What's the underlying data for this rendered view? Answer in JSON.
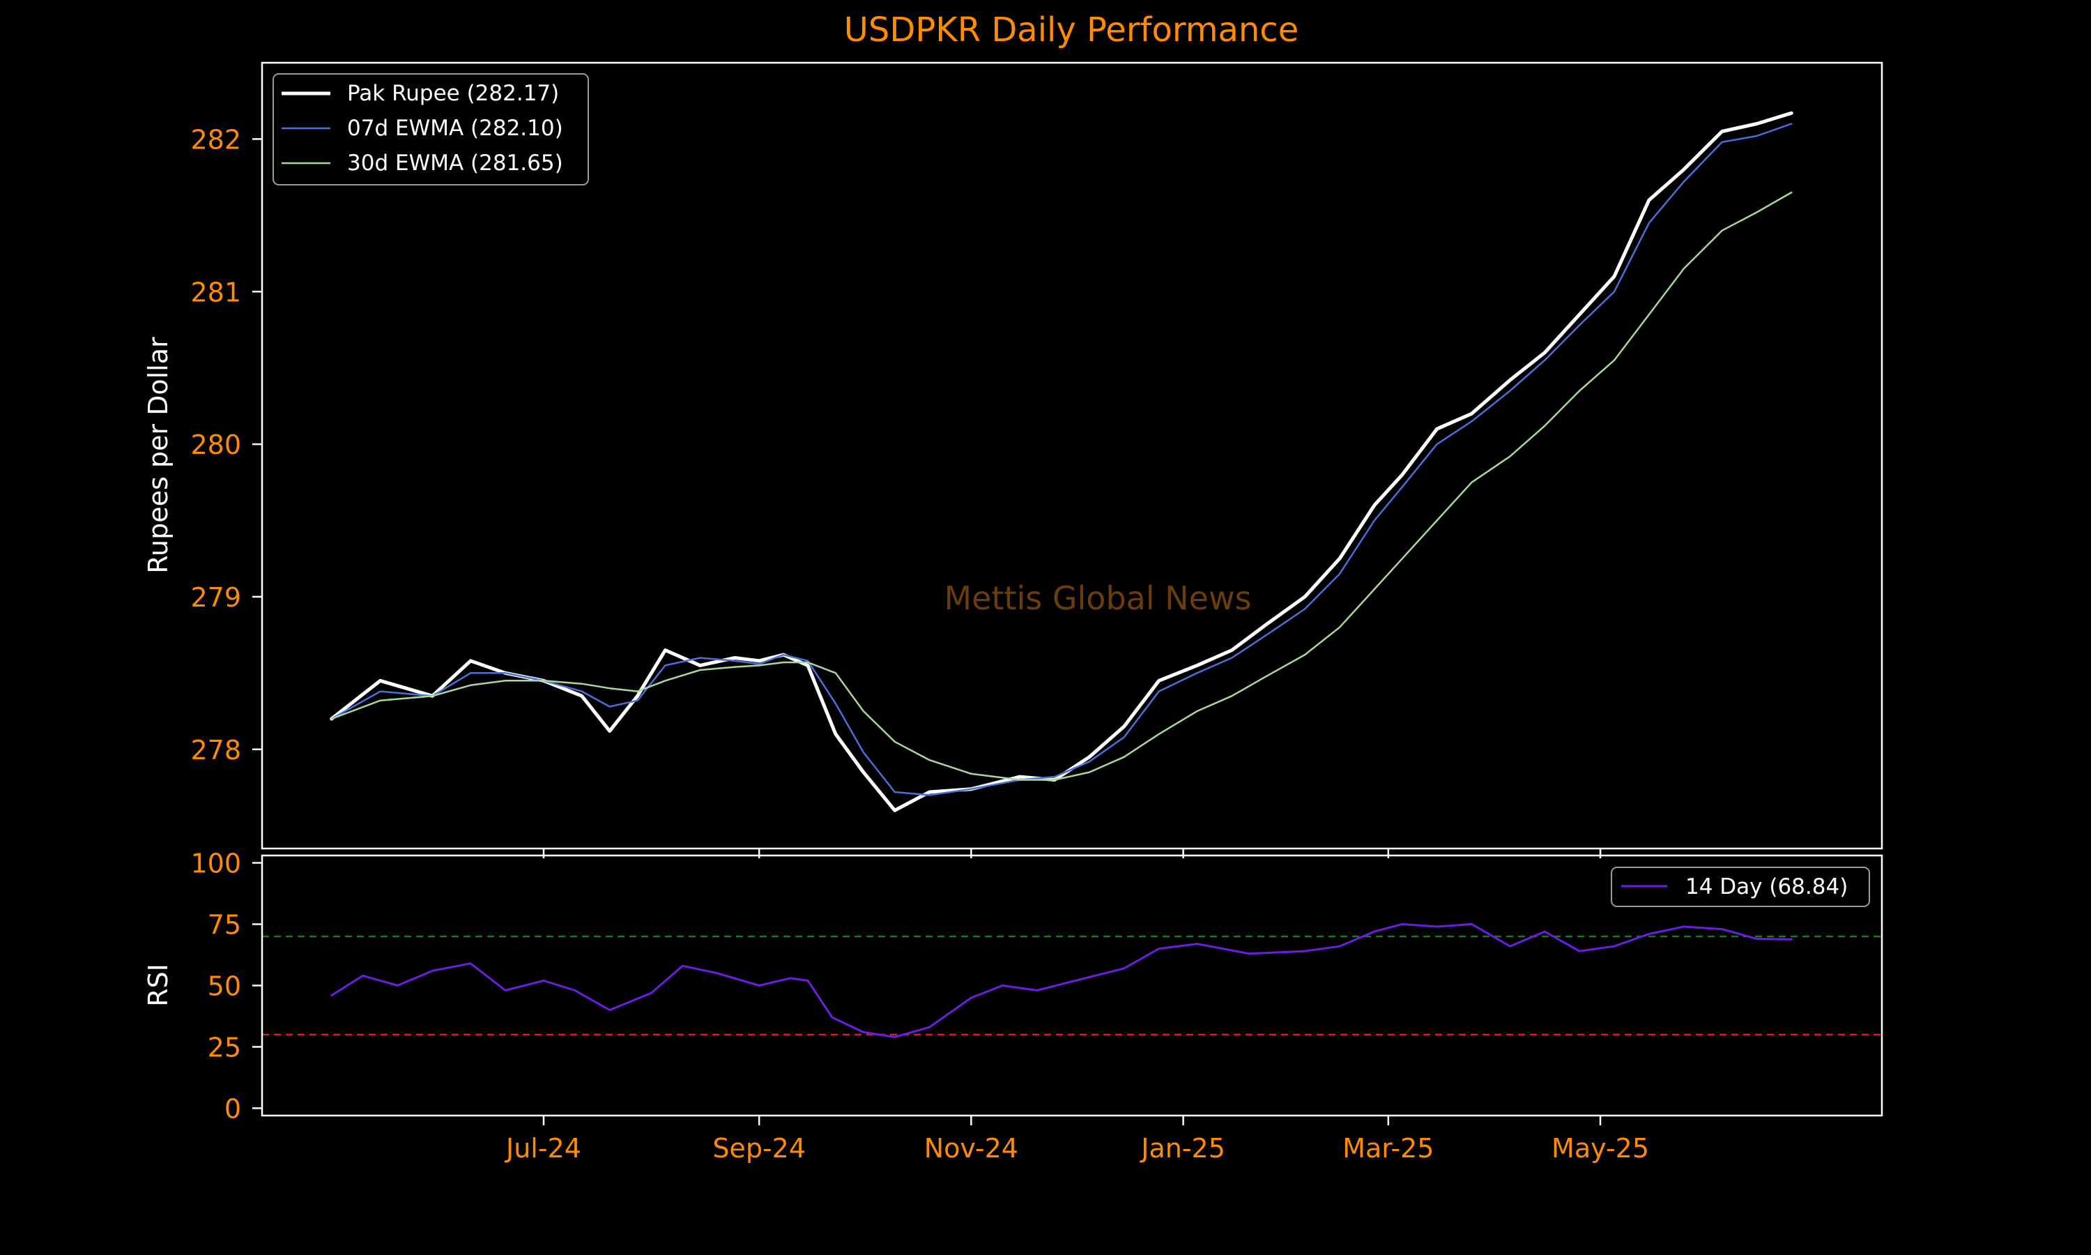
{
  "chart_data": [
    {
      "type": "line",
      "title": "USDPKR Daily Performance",
      "xlabel": "",
      "ylabel": "Rupees per Dollar",
      "xlim": [
        "2024-04-11",
        "2025-07-21"
      ],
      "ylim": [
        277.35,
        282.5
      ],
      "yticks": [
        278,
        279,
        280,
        281,
        282
      ],
      "xticks": [
        {
          "date": "2024-07-01",
          "label": "Jul-24"
        },
        {
          "date": "2024-09-01",
          "label": "Sep-24"
        },
        {
          "date": "2024-11-01",
          "label": "Nov-24"
        },
        {
          "date": "2025-01-01",
          "label": "Jan-25"
        },
        {
          "date": "2025-03-01",
          "label": "Mar-25"
        },
        {
          "date": "2025-05-01",
          "label": "May-25"
        }
      ],
      "grid": false,
      "legend": "top-left",
      "watermark": "Mettis Global News",
      "series": [
        {
          "name": "Pak Rupee (282.17)",
          "color": "#ffffff",
          "points": [
            [
              "2024-05-01",
              278.2
            ],
            [
              "2024-05-15",
              278.45
            ],
            [
              "2024-05-30",
              278.35
            ],
            [
              "2024-06-10",
              278.58
            ],
            [
              "2024-06-20",
              278.5
            ],
            [
              "2024-07-01",
              278.45
            ],
            [
              "2024-07-12",
              278.35
            ],
            [
              "2024-07-20",
              278.12
            ],
            [
              "2024-07-28",
              278.35
            ],
            [
              "2024-08-05",
              278.65
            ],
            [
              "2024-08-15",
              278.55
            ],
            [
              "2024-08-25",
              278.6
            ],
            [
              "2024-09-01",
              278.58
            ],
            [
              "2024-09-08",
              278.62
            ],
            [
              "2024-09-15",
              278.55
            ],
            [
              "2024-09-23",
              278.1
            ],
            [
              "2024-10-01",
              277.85
            ],
            [
              "2024-10-10",
              277.6
            ],
            [
              "2024-10-20",
              277.72
            ],
            [
              "2024-11-01",
              277.74
            ],
            [
              "2024-11-15",
              277.82
            ],
            [
              "2024-11-25",
              277.8
            ],
            [
              "2024-12-05",
              277.95
            ],
            [
              "2024-12-15",
              278.15
            ],
            [
              "2024-12-25",
              278.45
            ],
            [
              "2025-01-05",
              278.55
            ],
            [
              "2025-01-15",
              278.65
            ],
            [
              "2025-01-25",
              278.82
            ],
            [
              "2025-02-05",
              279.0
            ],
            [
              "2025-02-15",
              279.25
            ],
            [
              "2025-02-25",
              279.6
            ],
            [
              "2025-03-05",
              279.8
            ],
            [
              "2025-03-15",
              280.1
            ],
            [
              "2025-03-25",
              280.2
            ],
            [
              "2025-04-05",
              280.42
            ],
            [
              "2025-04-15",
              280.6
            ],
            [
              "2025-04-25",
              280.85
            ],
            [
              "2025-05-05",
              281.1
            ],
            [
              "2025-05-15",
              281.6
            ],
            [
              "2025-05-25",
              281.8
            ],
            [
              "2025-06-05",
              282.05
            ],
            [
              "2025-06-15",
              282.1
            ],
            [
              "2025-06-25",
              282.17
            ]
          ]
        },
        {
          "name": "07d EWMA (282.10)",
          "color": "#4a6fd8",
          "points": [
            [
              "2024-05-01",
              278.2
            ],
            [
              "2024-05-15",
              278.38
            ],
            [
              "2024-05-30",
              278.35
            ],
            [
              "2024-06-10",
              278.5
            ],
            [
              "2024-06-20",
              278.5
            ],
            [
              "2024-07-01",
              278.45
            ],
            [
              "2024-07-12",
              278.38
            ],
            [
              "2024-07-20",
              278.28
            ],
            [
              "2024-07-28",
              278.32
            ],
            [
              "2024-08-05",
              278.55
            ],
            [
              "2024-08-15",
              278.6
            ],
            [
              "2024-08-25",
              278.58
            ],
            [
              "2024-09-01",
              278.56
            ],
            [
              "2024-09-08",
              278.62
            ],
            [
              "2024-09-15",
              278.58
            ],
            [
              "2024-09-23",
              278.3
            ],
            [
              "2024-10-01",
              277.98
            ],
            [
              "2024-10-10",
              277.72
            ],
            [
              "2024-10-20",
              277.7
            ],
            [
              "2024-11-01",
              277.74
            ],
            [
              "2024-11-15",
              277.8
            ],
            [
              "2024-11-25",
              277.82
            ],
            [
              "2024-12-05",
              277.92
            ],
            [
              "2024-12-15",
              278.08
            ],
            [
              "2024-12-25",
              278.38
            ],
            [
              "2025-01-05",
              278.5
            ],
            [
              "2025-01-15",
              278.6
            ],
            [
              "2025-01-25",
              278.75
            ],
            [
              "2025-02-05",
              278.92
            ],
            [
              "2025-02-15",
              279.15
            ],
            [
              "2025-02-25",
              279.5
            ],
            [
              "2025-03-05",
              279.72
            ],
            [
              "2025-03-15",
              280.0
            ],
            [
              "2025-03-25",
              280.15
            ],
            [
              "2025-04-05",
              280.35
            ],
            [
              "2025-04-15",
              280.55
            ],
            [
              "2025-04-25",
              280.78
            ],
            [
              "2025-05-05",
              281.0
            ],
            [
              "2025-05-15",
              281.45
            ],
            [
              "2025-05-25",
              281.72
            ],
            [
              "2025-06-05",
              281.98
            ],
            [
              "2025-06-15",
              282.02
            ],
            [
              "2025-06-25",
              282.1
            ]
          ]
        },
        {
          "name": "30d EWMA (281.65)",
          "color": "#a8d899",
          "points": [
            [
              "2024-05-01",
              278.2
            ],
            [
              "2024-05-15",
              278.32
            ],
            [
              "2024-05-30",
              278.35
            ],
            [
              "2024-06-10",
              278.42
            ],
            [
              "2024-06-20",
              278.45
            ],
            [
              "2024-07-01",
              278.45
            ],
            [
              "2024-07-12",
              278.43
            ],
            [
              "2024-07-20",
              278.4
            ],
            [
              "2024-07-28",
              278.38
            ],
            [
              "2024-08-05",
              278.45
            ],
            [
              "2024-08-15",
              278.52
            ],
            [
              "2024-08-25",
              278.54
            ],
            [
              "2024-09-01",
              278.55
            ],
            [
              "2024-09-08",
              278.57
            ],
            [
              "2024-09-15",
              278.57
            ],
            [
              "2024-09-23",
              278.5
            ],
            [
              "2024-10-01",
              278.25
            ],
            [
              "2024-10-10",
              278.05
            ],
            [
              "2024-10-20",
              277.93
            ],
            [
              "2024-11-01",
              277.84
            ],
            [
              "2024-11-15",
              277.8
            ],
            [
              "2024-11-25",
              277.8
            ],
            [
              "2024-12-05",
              277.85
            ],
            [
              "2024-12-15",
              277.95
            ],
            [
              "2024-12-25",
              278.1
            ],
            [
              "2025-01-05",
              278.25
            ],
            [
              "2025-01-15",
              278.35
            ],
            [
              "2025-01-25",
              278.48
            ],
            [
              "2025-02-05",
              278.62
            ],
            [
              "2025-02-15",
              278.8
            ],
            [
              "2025-02-25",
              279.05
            ],
            [
              "2025-03-05",
              279.25
            ],
            [
              "2025-03-15",
              279.5
            ],
            [
              "2025-03-25",
              279.75
            ],
            [
              "2025-04-05",
              279.92
            ],
            [
              "2025-04-15",
              280.12
            ],
            [
              "2025-04-25",
              280.35
            ],
            [
              "2025-05-05",
              280.55
            ],
            [
              "2025-05-15",
              280.85
            ],
            [
              "2025-05-25",
              281.15
            ],
            [
              "2025-06-05",
              281.4
            ],
            [
              "2025-06-15",
              281.52
            ],
            [
              "2025-06-25",
              281.65
            ]
          ]
        }
      ]
    },
    {
      "type": "line",
      "title": "",
      "xlabel": "",
      "ylabel": "RSI",
      "xlim": [
        "2024-04-11",
        "2025-07-21"
      ],
      "ylim": [
        -3,
        103
      ],
      "yticks": [
        0,
        25,
        50,
        75,
        100
      ],
      "grid": false,
      "legend": "top-right",
      "reference_lines": [
        {
          "value": 70,
          "color": "#1a7a1a",
          "style": "dashed"
        },
        {
          "value": 30,
          "color": "#d21a3c",
          "style": "dashed"
        }
      ],
      "series": [
        {
          "name": "14 Day (68.84)",
          "color": "#6a1fe0",
          "points": [
            [
              "2024-05-01",
              46
            ],
            [
              "2024-05-10",
              54
            ],
            [
              "2024-05-20",
              50
            ],
            [
              "2024-05-30",
              56
            ],
            [
              "2024-06-10",
              59
            ],
            [
              "2024-06-20",
              48
            ],
            [
              "2024-07-01",
              52
            ],
            [
              "2024-07-10",
              48
            ],
            [
              "2024-07-20",
              40
            ],
            [
              "2024-08-01",
              47
            ],
            [
              "2024-08-10",
              58
            ],
            [
              "2024-08-20",
              55
            ],
            [
              "2024-09-01",
              50
            ],
            [
              "2024-09-10",
              53
            ],
            [
              "2024-09-15",
              52
            ],
            [
              "2024-09-22",
              37
            ],
            [
              "2024-10-01",
              31
            ],
            [
              "2024-10-10",
              29
            ],
            [
              "2024-10-20",
              33
            ],
            [
              "2024-11-01",
              45
            ],
            [
              "2024-11-10",
              50
            ],
            [
              "2024-11-20",
              48
            ],
            [
              "2024-12-01",
              52
            ],
            [
              "2024-12-15",
              57
            ],
            [
              "2024-12-25",
              65
            ],
            [
              "2025-01-05",
              67
            ],
            [
              "2025-01-20",
              63
            ],
            [
              "2025-02-05",
              64
            ],
            [
              "2025-02-15",
              66
            ],
            [
              "2025-02-25",
              72
            ],
            [
              "2025-03-05",
              75
            ],
            [
              "2025-03-15",
              74
            ],
            [
              "2025-03-25",
              75
            ],
            [
              "2025-04-05",
              66
            ],
            [
              "2025-04-15",
              72
            ],
            [
              "2025-04-25",
              64
            ],
            [
              "2025-05-05",
              66
            ],
            [
              "2025-05-15",
              71
            ],
            [
              "2025-05-25",
              74
            ],
            [
              "2025-06-05",
              73
            ],
            [
              "2025-06-15",
              69
            ],
            [
              "2025-06-25",
              68.84
            ]
          ]
        }
      ]
    }
  ]
}
